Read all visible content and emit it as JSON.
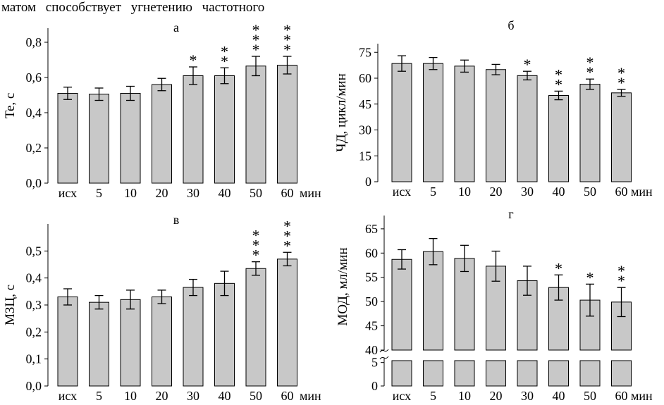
{
  "header_text": "матом способствует угнетению частотного",
  "chart_data": [
    {
      "panel": "а",
      "type": "bar",
      "ylabel": "Te, c",
      "xunit": "мин",
      "categories": [
        "исх",
        "5",
        "10",
        "20",
        "30",
        "40",
        "50",
        "60"
      ],
      "values": [
        0.51,
        0.505,
        0.51,
        0.56,
        0.61,
        0.61,
        0.665,
        0.67
      ],
      "errors": [
        0.035,
        0.035,
        0.04,
        0.035,
        0.05,
        0.045,
        0.055,
        0.05
      ],
      "stars": [
        "",
        "",
        "",
        "",
        "*",
        "**",
        "***",
        "***"
      ],
      "ylim": [
        0,
        0.88
      ],
      "yticks": [
        "0,0",
        "0,2",
        "0,4",
        "0,6",
        "0,8"
      ],
      "ytick_values": [
        0,
        0.2,
        0.4,
        0.6,
        0.8
      ]
    },
    {
      "panel": "б",
      "type": "bar",
      "ylabel": "ЧД, цикл/мин",
      "xunit": "мин",
      "categories": [
        "исх",
        "5",
        "10",
        "20",
        "30",
        "40",
        "50",
        "60"
      ],
      "values": [
        68.5,
        68.5,
        67,
        65,
        61.5,
        50,
        56.5,
        51.5
      ],
      "errors": [
        4.5,
        3.5,
        3.5,
        3,
        2.5,
        2.5,
        3,
        2
      ],
      "stars": [
        "",
        "",
        "",
        "",
        "*",
        "**",
        "**",
        "**"
      ],
      "ylim": [
        0,
        80
      ],
      "yticks": [
        "0",
        "15",
        "30",
        "45",
        "60",
        "75"
      ],
      "ytick_values": [
        0,
        15,
        30,
        45,
        60,
        75
      ]
    },
    {
      "panel": "в",
      "type": "bar",
      "ylabel": "МЗЦ, с",
      "xunit": "мин",
      "categories": [
        "исх",
        "5",
        "10",
        "20",
        "30",
        "40",
        "50",
        "60"
      ],
      "values": [
        0.33,
        0.31,
        0.32,
        0.33,
        0.365,
        0.38,
        0.435,
        0.47
      ],
      "errors": [
        0.03,
        0.025,
        0.035,
        0.025,
        0.03,
        0.045,
        0.025,
        0.025
      ],
      "stars": [
        "",
        "",
        "",
        "",
        "",
        "",
        "***",
        "***"
      ],
      "ylim": [
        0,
        0.6
      ],
      "yticks": [
        "0,0",
        "0,1",
        "0,2",
        "0,3",
        "0,4",
        "0,5"
      ],
      "ytick_values": [
        0,
        0.1,
        0.2,
        0.3,
        0.4,
        0.5
      ]
    },
    {
      "panel": "г",
      "type": "bar",
      "ylabel": "МОД, мл/мин",
      "xunit": "мин",
      "categories": [
        "исх",
        "5",
        "10",
        "20",
        "30",
        "40",
        "50",
        "60"
      ],
      "values": [
        58.7,
        60.3,
        58.9,
        57.3,
        54.3,
        52.9,
        50.3,
        49.9
      ],
      "errors": [
        2,
        2.7,
        2.7,
        3.1,
        3,
        2.6,
        3.3,
        3
      ],
      "stars": [
        "",
        "",
        "",
        "",
        "",
        "*",
        "*",
        "**"
      ],
      "axis_break": {
        "lower_range": [
          0,
          6
        ],
        "upper_range": [
          40,
          66
        ]
      },
      "yticks_lower": [
        "0",
        "5"
      ],
      "yticks_lower_values": [
        0,
        5
      ],
      "yticks_upper": [
        "40",
        "45",
        "50",
        "55",
        "60",
        "65"
      ],
      "yticks_upper_values": [
        40,
        45,
        50,
        55,
        60,
        65
      ]
    }
  ]
}
